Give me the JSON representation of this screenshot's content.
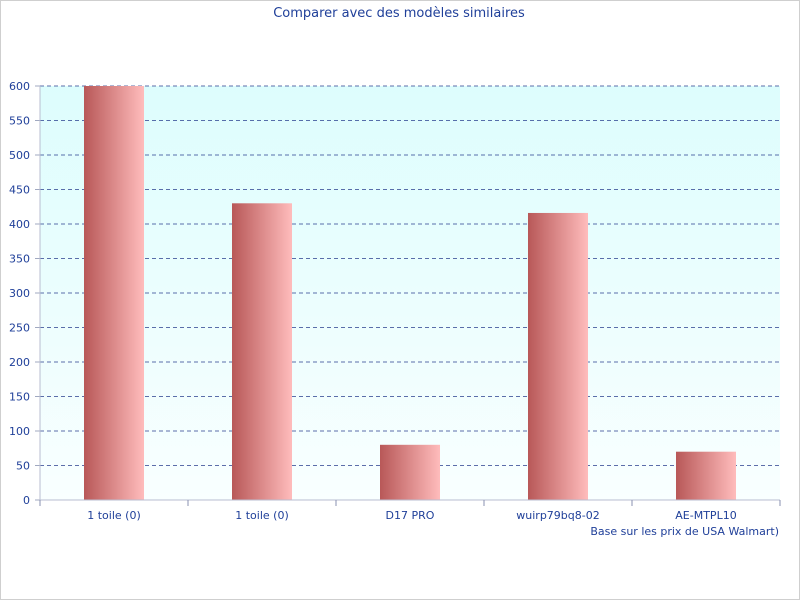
{
  "chart_data": {
    "type": "bar",
    "title": "Comparer avec des modèles similaires",
    "xlabel": "",
    "ylabel": "",
    "note": "Base sur les prix de USA Walmart)",
    "categories": [
      "1 toile (0)",
      "1 toile (0)",
      "D17 PRO",
      "wuirp79bq8-02",
      "AE-MTPL10"
    ],
    "values": [
      600,
      430,
      80,
      416,
      70
    ],
    "ylim": [
      0,
      600
    ],
    "yticks": [
      0,
      50,
      100,
      150,
      200,
      250,
      300,
      350,
      400,
      450,
      500,
      550,
      600
    ],
    "grid": true,
    "colors": {
      "text": "#1f3f99",
      "grid": "#2a3f8f",
      "bar_dark": "#b85858",
      "bar_light": "#ffbcbc",
      "plot_top": "#ddfdfd",
      "plot_bottom": "#f9ffff"
    }
  }
}
